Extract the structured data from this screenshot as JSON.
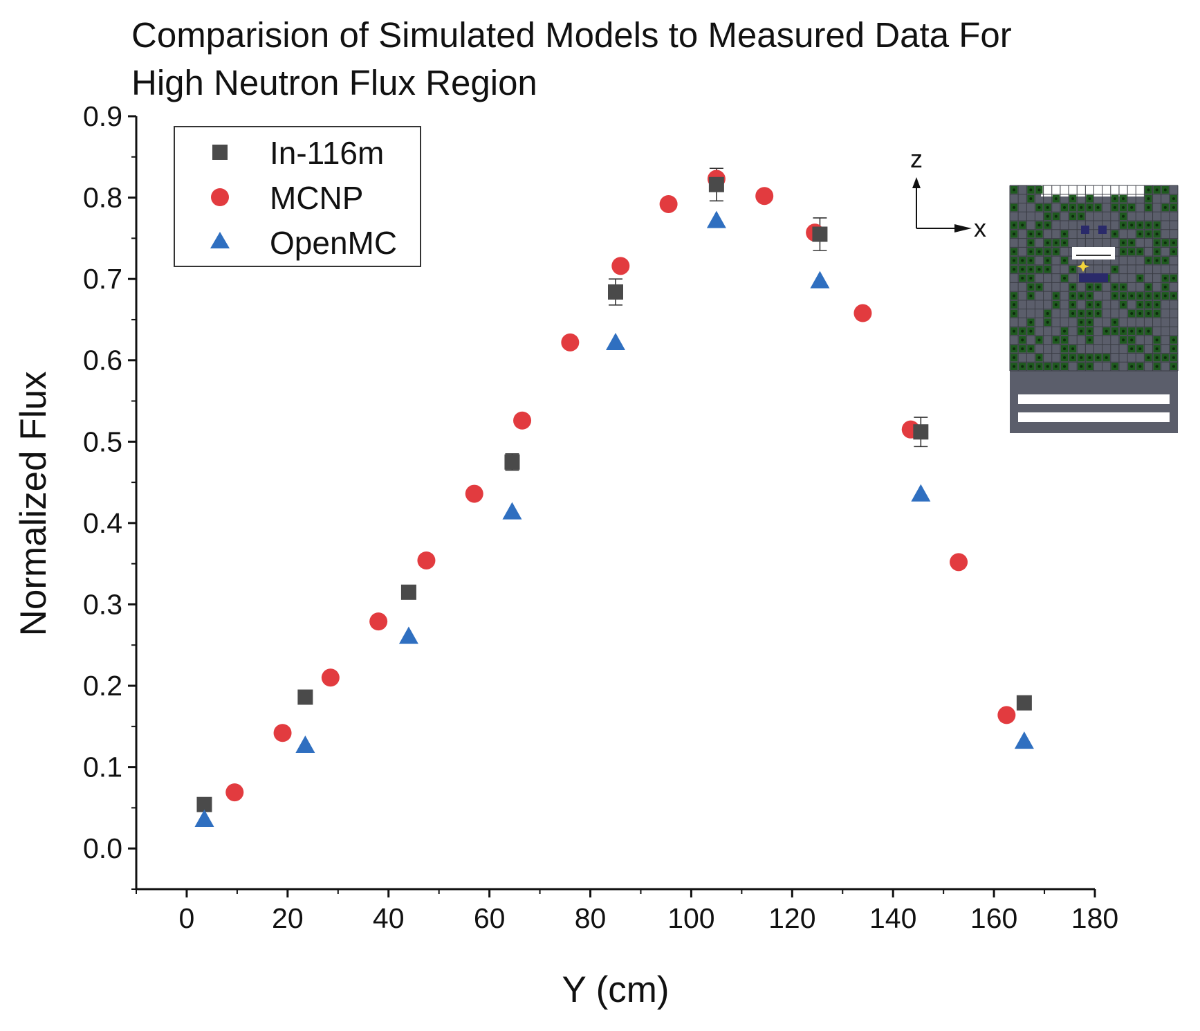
{
  "chart_data": {
    "type": "scatter",
    "title_lines": [
      "Comparision of Simulated Models to Measured Data For",
      "High Neutron Flux Region"
    ],
    "xlabel": "Y (cm)",
    "ylabel": "Normalized Flux",
    "xlim": [
      -10,
      180
    ],
    "ylim": [
      -0.05,
      0.9
    ],
    "x_ticks": [
      0,
      20,
      40,
      60,
      80,
      100,
      120,
      140,
      160,
      180
    ],
    "x_tick_labels": [
      "0",
      "20",
      "40",
      "60",
      "80",
      "100",
      "120",
      "140",
      "160",
      "180"
    ],
    "y_ticks": [
      0.0,
      0.1,
      0.2,
      0.3,
      0.4,
      0.5,
      0.6,
      0.7,
      0.8,
      0.9
    ],
    "y_tick_labels": [
      "0.0",
      "0.1",
      "0.2",
      "0.3",
      "0.4",
      "0.5",
      "0.6",
      "0.7",
      "0.8",
      "0.9"
    ],
    "grid": false,
    "legend_position": "top-left",
    "series": [
      {
        "name": "In-116m",
        "marker": "square",
        "color": "#4a4a4a",
        "x": [
          3.5,
          23.5,
          44,
          64.5,
          85,
          105,
          125.5,
          145.5,
          166
        ],
        "y": [
          0.054,
          0.186,
          0.315,
          0.475,
          0.684,
          0.816,
          0.755,
          0.512,
          0.179
        ],
        "error": [
          0.004,
          0.006,
          0.006,
          0.01,
          0.016,
          0.02,
          0.02,
          0.018,
          0.006
        ]
      },
      {
        "name": "MCNP",
        "marker": "circle",
        "color": "#e23b3f",
        "x": [
          9.5,
          19,
          28.5,
          38,
          47.5,
          57,
          66.5,
          76,
          86,
          95.5,
          105,
          114.5,
          124.5,
          134,
          143.5,
          153,
          162.5
        ],
        "y": [
          0.069,
          0.142,
          0.21,
          0.279,
          0.354,
          0.436,
          0.526,
          0.622,
          0.716,
          0.792,
          0.823,
          0.802,
          0.757,
          0.658,
          0.515,
          0.352,
          0.164
        ]
      },
      {
        "name": "OpenMC",
        "marker": "triangle",
        "color": "#2f6fc0",
        "x": [
          3.5,
          23.5,
          44,
          64.5,
          85,
          105,
          125.5,
          145.5,
          166
        ],
        "y": [
          0.035,
          0.126,
          0.26,
          0.413,
          0.621,
          0.771,
          0.697,
          0.435,
          0.131
        ]
      }
    ],
    "inset": {
      "description": "reactor core cross-section",
      "axis_labels": [
        "z",
        "x"
      ]
    }
  },
  "colors": {
    "axis": "#111111",
    "inset_bg": "#5b5e6b",
    "inset_grid": "#3a3c44",
    "inset_fuel": "#1f5a1f",
    "inset_fuel_dot": "#0d2a0d",
    "inset_dark": "#2a2a6a",
    "inset_white": "#ffffff",
    "inset_star": "#f2d43a"
  }
}
